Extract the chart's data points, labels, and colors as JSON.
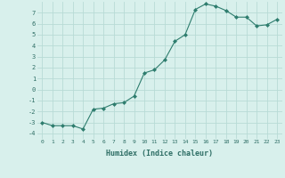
{
  "x": [
    0,
    1,
    2,
    3,
    4,
    5,
    6,
    7,
    8,
    9,
    10,
    11,
    12,
    13,
    14,
    15,
    16,
    17,
    18,
    19,
    20,
    21,
    22,
    23
  ],
  "y": [
    -3.0,
    -3.3,
    -3.3,
    -3.3,
    -3.6,
    -1.8,
    -1.7,
    -1.3,
    -1.2,
    -0.6,
    1.5,
    1.8,
    2.7,
    4.4,
    5.0,
    7.3,
    7.8,
    7.6,
    7.2,
    6.6,
    6.6,
    5.8,
    5.9,
    6.4
  ],
  "line_color": "#2e7d6e",
  "marker": "D",
  "markersize": 2.0,
  "xlabel": "Humidex (Indice chaleur)",
  "xlim": [
    -0.5,
    23.5
  ],
  "ylim": [
    -4.5,
    8.0
  ],
  "yticks": [
    -4,
    -3,
    -2,
    -1,
    0,
    1,
    2,
    3,
    4,
    5,
    6,
    7
  ],
  "xticks": [
    0,
    1,
    2,
    3,
    4,
    5,
    6,
    7,
    8,
    9,
    10,
    11,
    12,
    13,
    14,
    15,
    16,
    17,
    18,
    19,
    20,
    21,
    22,
    23
  ],
  "xtick_labels": [
    "0",
    "1",
    "2",
    "3",
    "4",
    "5",
    "6",
    "7",
    "8",
    "9",
    "10",
    "11",
    "12",
    "13",
    "14",
    "15",
    "16",
    "17",
    "18",
    "19",
    "20",
    "21",
    "22",
    "23"
  ],
  "bg_color": "#d8f0ec",
  "grid_color": "#b8dbd6"
}
